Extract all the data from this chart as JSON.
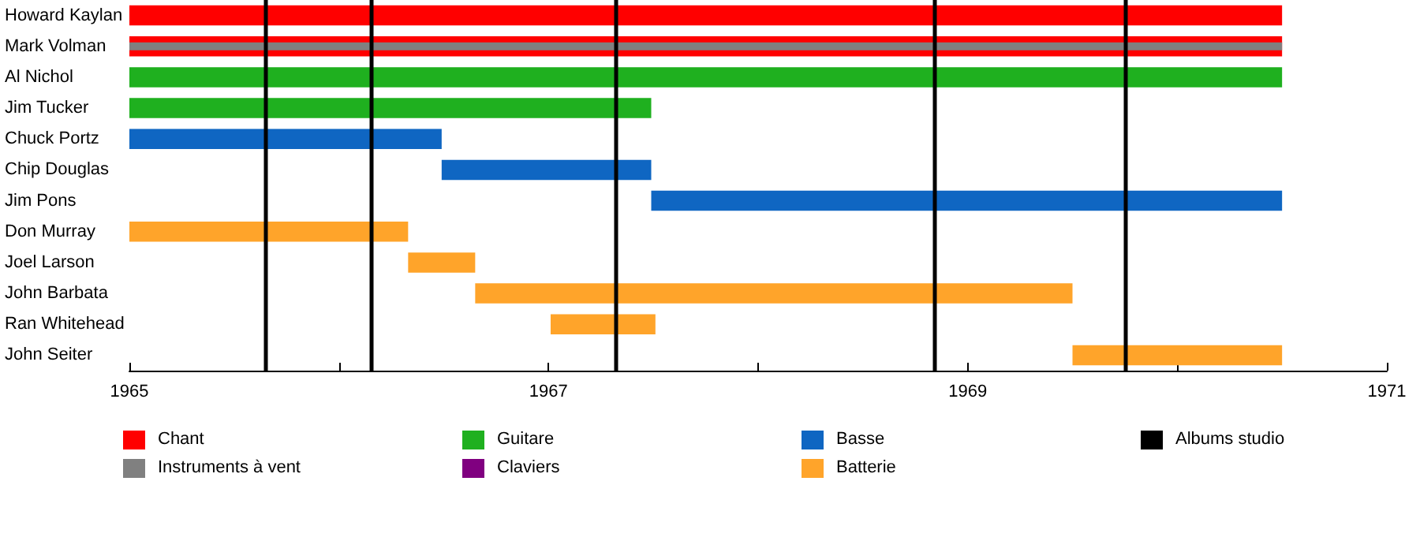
{
  "chart_data": {
    "type": "bar",
    "orientation": "horizontal",
    "categories": [
      "Howard Kaylan",
      "Mark Volman",
      "Al Nichol",
      "Jim Tucker",
      "Chuck Portz",
      "Chip Douglas",
      "Jim Pons",
      "Don Murray",
      "Joel Larson",
      "John Barbata",
      "Ran Whitehead",
      "John Seiter"
    ],
    "series": [
      {
        "name": "Chant",
        "color": "#ff0000",
        "base": [
          1965,
          1965,
          null,
          null,
          null,
          null,
          null,
          null,
          null,
          null,
          null,
          null
        ],
        "values": [
          5.5,
          5.5,
          null,
          null,
          null,
          null,
          null,
          null,
          null,
          null,
          null,
          null
        ]
      },
      {
        "name": "Instruments à vent",
        "color": "#808080",
        "base": [
          null,
          1965,
          null,
          null,
          null,
          null,
          null,
          null,
          null,
          null,
          null,
          null
        ],
        "values": [
          null,
          5.5,
          null,
          null,
          null,
          null,
          null,
          null,
          null,
          null,
          null,
          null
        ]
      },
      {
        "name": "Guitare",
        "color": "#1fb01f",
        "base": [
          null,
          null,
          1965,
          1965,
          null,
          null,
          null,
          null,
          null,
          null,
          null,
          null
        ],
        "values": [
          null,
          null,
          5.5,
          2.49,
          null,
          null,
          null,
          null,
          null,
          null,
          null,
          null
        ]
      },
      {
        "name": "Claviers",
        "color": "#800080",
        "base": [
          null,
          null,
          null,
          null,
          null,
          null,
          null,
          null,
          null,
          null,
          null,
          null
        ],
        "values": [
          null,
          null,
          null,
          null,
          null,
          null,
          null,
          null,
          null,
          null,
          null,
          null
        ]
      },
      {
        "name": "Basse",
        "color": "#0f66c2",
        "base": [
          null,
          null,
          null,
          null,
          1965,
          1966.49,
          1967.49,
          null,
          null,
          null,
          null,
          null
        ],
        "values": [
          null,
          null,
          null,
          null,
          1.49,
          1.0,
          3.01,
          null,
          null,
          null,
          null,
          null
        ]
      },
      {
        "name": "Batterie",
        "color": "#ffa42a",
        "base": [
          null,
          null,
          null,
          null,
          null,
          null,
          null,
          1965,
          1966.33,
          1966.65,
          1967.01,
          1969.5
        ],
        "values": [
          null,
          null,
          null,
          null,
          null,
          null,
          null,
          1.33,
          0.32,
          2.85,
          0.5,
          1.0
        ]
      }
    ],
    "xlim": [
      1965,
      1971
    ],
    "xticks": [
      1965,
      {
        "value": 1966,
        "label": null
      },
      1967,
      {
        "value": 1968,
        "label": null
      },
      1969,
      {
        "value": 1970,
        "label": null
      },
      1971
    ],
    "ref_lines": [
      {
        "axis": "x",
        "value": 1965.65,
        "label": "Albums studio",
        "color": "#000000"
      },
      {
        "axis": "x",
        "value": 1966.15,
        "label": null,
        "color": "#000000"
      },
      {
        "axis": "x",
        "value": 1967.32,
        "label": null,
        "color": "#000000"
      },
      {
        "axis": "x",
        "value": 1968.84,
        "label": null,
        "color": "#000000"
      },
      {
        "axis": "x",
        "value": 1969.75,
        "label": null,
        "color": "#000000"
      }
    ],
    "legend": "bottom",
    "grid": false
  }
}
